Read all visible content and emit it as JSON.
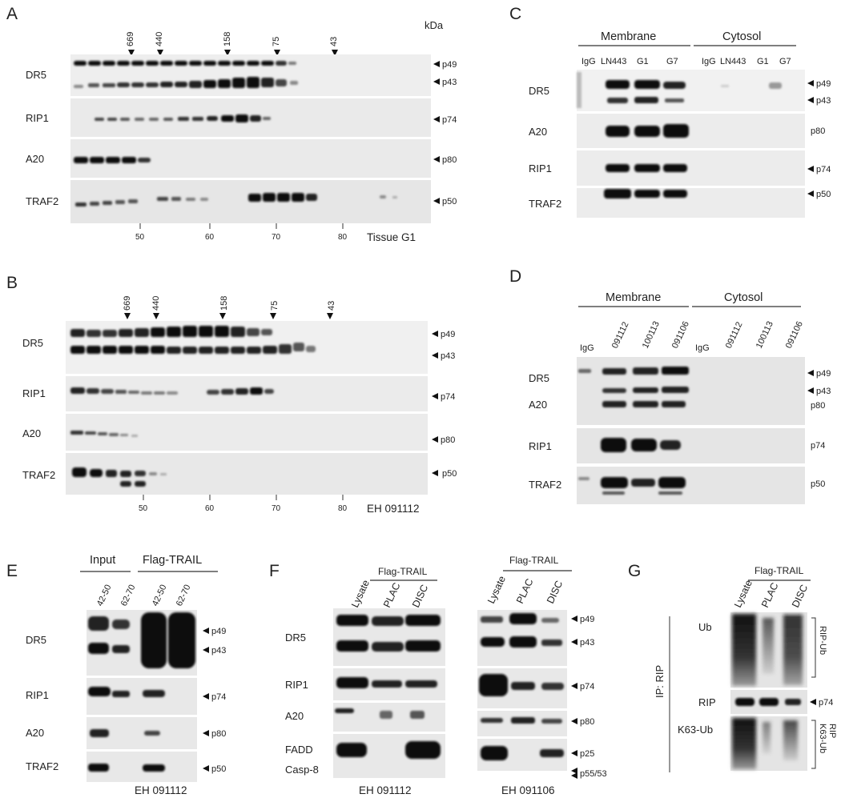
{
  "panels": {
    "A": {
      "letter": "A",
      "unit": "kDa",
      "markers": [
        "669",
        "440",
        "158",
        "75",
        "43"
      ],
      "rows": [
        "DR5",
        "RIP1",
        "A20",
        "TRAF2"
      ],
      "row_mw": [
        [
          "p49",
          "p43"
        ],
        [
          "p74"
        ],
        [
          "p80"
        ],
        [
          "p50"
        ]
      ],
      "axis_ticks": [
        "50",
        "60",
        "70",
        "80"
      ],
      "footer": "Tissue G1"
    },
    "B": {
      "letter": "B",
      "markers": [
        "669",
        "440",
        "158",
        "75",
        "43"
      ],
      "rows": [
        "DR5",
        "RIP1",
        "A20",
        "TRAF2"
      ],
      "row_mw": [
        [
          "p49",
          "p43"
        ],
        [
          "p74"
        ],
        [
          "p80"
        ],
        [
          "p50"
        ]
      ],
      "axis_ticks": [
        "50",
        "60",
        "70",
        "80"
      ],
      "footer": "EH 091112"
    },
    "C": {
      "letter": "C",
      "groups": [
        "Membrane",
        "Cytosol"
      ],
      "lanes": [
        "IgG",
        "LN443",
        "G1",
        "G7",
        "IgG",
        "LN443",
        "G1",
        "G7"
      ],
      "rows": [
        "DR5",
        "A20",
        "RIP1",
        "TRAF2"
      ],
      "row_mw": [
        [
          "p49",
          "p43"
        ],
        [
          "p80"
        ],
        [
          "p74"
        ],
        [
          "p50"
        ]
      ]
    },
    "D": {
      "letter": "D",
      "groups": [
        "Membrane",
        "Cytosol"
      ],
      "lanes": [
        "IgG",
        "091112",
        "100113",
        "091106",
        "IgG",
        "091112",
        "100113",
        "091106"
      ],
      "rows": [
        "DR5",
        "A20",
        "RIP1",
        "TRAF2"
      ],
      "row_mw": [
        [
          "p49",
          "p43"
        ],
        [
          "p80"
        ],
        [
          "p74"
        ],
        [
          "p50"
        ]
      ]
    },
    "E": {
      "letter": "E",
      "groups": [
        "Input",
        "Flag-TRAIL"
      ],
      "lanes": [
        "42-50",
        "62-70",
        "42-50",
        "62-70"
      ],
      "rows": [
        "DR5",
        "RIP1",
        "A20",
        "TRAF2"
      ],
      "row_mw": [
        [
          "p49",
          "p43"
        ],
        [
          "p74"
        ],
        [
          "p80"
        ],
        [
          "p50"
        ]
      ],
      "footer": "EH 091112"
    },
    "F": {
      "letter": "F",
      "group": "Flag-TRAIL",
      "lanes": [
        "Lysate",
        "PLAC",
        "DISC"
      ],
      "rows": [
        "DR5",
        "RIP1",
        "A20",
        "FADD",
        "Casp-8"
      ],
      "row_mw": [
        [
          "p49",
          "p43"
        ],
        [
          "p74"
        ],
        [
          "p80"
        ],
        [
          "p25"
        ],
        [
          "p55/53"
        ]
      ],
      "footer_left": "EH 091112",
      "footer_right": "EH 091106"
    },
    "G": {
      "letter": "G",
      "group": "Flag-TRAIL",
      "lanes": [
        "Lysate",
        "PLAC",
        "DISC"
      ],
      "ip_label": "IP: RIP",
      "rows": [
        "Ub",
        "RIP",
        "K63-Ub"
      ],
      "row_mw": [
        [
          "RIP-Ub"
        ],
        [
          "p74"
        ],
        [
          "RIP",
          "K63-Ub"
        ]
      ]
    }
  }
}
